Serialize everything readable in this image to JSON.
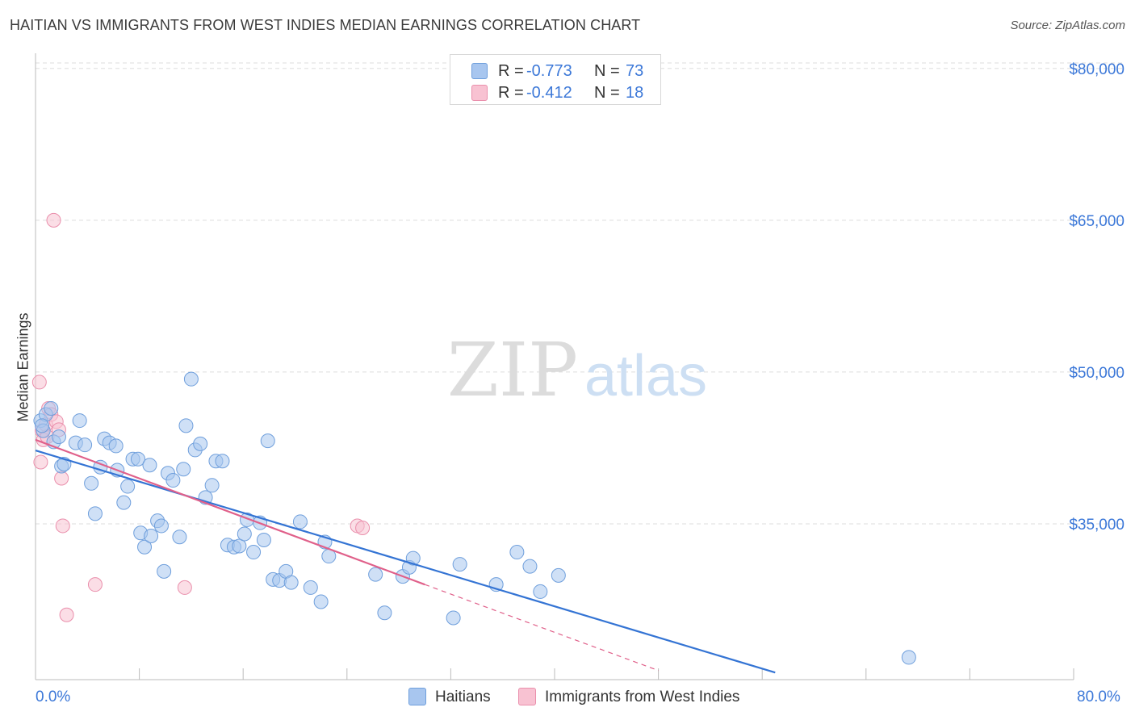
{
  "header": {
    "title": "HAITIAN VS IMMIGRANTS FROM WEST INDIES MEDIAN EARNINGS CORRELATION CHART",
    "source": "Source: ZipAtlas.com"
  },
  "watermark": {
    "zip": "ZIP",
    "atlas": "atlas"
  },
  "colors": {
    "haitians_fill": "#a8c6ef",
    "haitians_stroke": "#6f9fdc",
    "haitians_line": "#3474d4",
    "westindies_fill": "#f8c2d2",
    "westindies_stroke": "#ea8fac",
    "westindies_line": "#e0608a",
    "axis_label": "#3c78d8",
    "grid": "#dddddd"
  },
  "stats_legend": [
    {
      "r_label": "R =",
      "r_value": "-0.773",
      "n_label": "N =",
      "n_value": "73"
    },
    {
      "r_label": "R =",
      "r_value": "-0.412",
      "n_label": "N =",
      "n_value": "18"
    }
  ],
  "bottom_legend": [
    {
      "label": "Haitians"
    },
    {
      "label": "Immigrants from West Indies"
    }
  ],
  "chart_data": {
    "type": "scatter",
    "title": "HAITIAN VS IMMIGRANTS FROM WEST INDIES MEDIAN EARNINGS CORRELATION CHART",
    "xlabel": "",
    "ylabel": "Median Earnings",
    "xlim": [
      0,
      80
    ],
    "ylim": [
      19600,
      81500
    ],
    "x_tick_labels": [
      "0.0%",
      "80.0%"
    ],
    "y_ticks": [
      35000,
      50000,
      65000,
      80000
    ],
    "y_tick_labels": [
      "$35,000",
      "$50,000",
      "$65,000",
      "$80,000"
    ],
    "legend_position": "top-center",
    "series": [
      {
        "name": "Haitians",
        "r": -0.773,
        "n": 73,
        "trend": {
          "x": [
            0,
            57
          ],
          "y": [
            42250,
            20300
          ],
          "style": "solid"
        },
        "points": [
          [
            0.4,
            45200
          ],
          [
            0.6,
            44200
          ],
          [
            0.8,
            45800
          ],
          [
            1.2,
            46400
          ],
          [
            1.4,
            43100
          ],
          [
            1.8,
            43600
          ],
          [
            2.0,
            40700
          ],
          [
            2.2,
            40900
          ],
          [
            3.1,
            43000
          ],
          [
            3.4,
            45200
          ],
          [
            3.8,
            42800
          ],
          [
            4.3,
            39000
          ],
          [
            4.6,
            36000
          ],
          [
            5.0,
            40600
          ],
          [
            5.3,
            43400
          ],
          [
            5.7,
            43000
          ],
          [
            6.2,
            42700
          ],
          [
            6.3,
            40300
          ],
          [
            6.8,
            37100
          ],
          [
            7.1,
            38700
          ],
          [
            7.5,
            41400
          ],
          [
            7.9,
            41400
          ],
          [
            8.1,
            34100
          ],
          [
            8.4,
            32700
          ],
          [
            8.8,
            40800
          ],
          [
            8.9,
            33800
          ],
          [
            9.4,
            35300
          ],
          [
            9.7,
            34800
          ],
          [
            9.9,
            30300
          ],
          [
            10.2,
            40000
          ],
          [
            10.6,
            39300
          ],
          [
            11.1,
            33700
          ],
          [
            11.4,
            40400
          ],
          [
            11.6,
            44700
          ],
          [
            12.0,
            49300
          ],
          [
            12.3,
            42300
          ],
          [
            12.7,
            42900
          ],
          [
            13.1,
            37600
          ],
          [
            13.6,
            38800
          ],
          [
            13.9,
            41200
          ],
          [
            14.4,
            41200
          ],
          [
            14.8,
            32900
          ],
          [
            15.3,
            32700
          ],
          [
            15.7,
            32800
          ],
          [
            16.1,
            34000
          ],
          [
            16.3,
            35400
          ],
          [
            16.8,
            32200
          ],
          [
            17.3,
            35100
          ],
          [
            17.6,
            33400
          ],
          [
            17.9,
            43200
          ],
          [
            18.3,
            29500
          ],
          [
            18.8,
            29400
          ],
          [
            19.3,
            30300
          ],
          [
            19.7,
            29200
          ],
          [
            20.4,
            35200
          ],
          [
            21.2,
            28700
          ],
          [
            22.0,
            27300
          ],
          [
            22.3,
            33200
          ],
          [
            22.6,
            31800
          ],
          [
            26.2,
            30000
          ],
          [
            26.9,
            26200
          ],
          [
            28.3,
            29800
          ],
          [
            28.8,
            30700
          ],
          [
            29.1,
            31600
          ],
          [
            32.2,
            25700
          ],
          [
            32.7,
            31000
          ],
          [
            35.5,
            29000
          ],
          [
            37.1,
            32200
          ],
          [
            38.1,
            30800
          ],
          [
            38.9,
            28300
          ],
          [
            40.3,
            29900
          ],
          [
            67.3,
            21800
          ],
          [
            0.5,
            44700
          ]
        ]
      },
      {
        "name": "Immigrants from West Indies",
        "r": -0.412,
        "n": 18,
        "trend": {
          "x": [
            0,
            30,
            48
          ],
          "y": [
            43300,
            29000,
            20500
          ],
          "style": "solid_then_dashed"
        },
        "points": [
          [
            0.3,
            49000
          ],
          [
            0.4,
            41100
          ],
          [
            0.5,
            44200
          ],
          [
            0.6,
            43300
          ],
          [
            0.8,
            44800
          ],
          [
            1.0,
            46400
          ],
          [
            1.2,
            45800
          ],
          [
            1.4,
            65000
          ],
          [
            1.6,
            45100
          ],
          [
            1.8,
            44300
          ],
          [
            2.0,
            39500
          ],
          [
            2.1,
            34800
          ],
          [
            2.4,
            26000
          ],
          [
            4.6,
            29000
          ],
          [
            11.5,
            28700
          ],
          [
            24.8,
            34800
          ],
          [
            25.2,
            34600
          ],
          [
            0.9,
            43600
          ]
        ]
      }
    ]
  }
}
